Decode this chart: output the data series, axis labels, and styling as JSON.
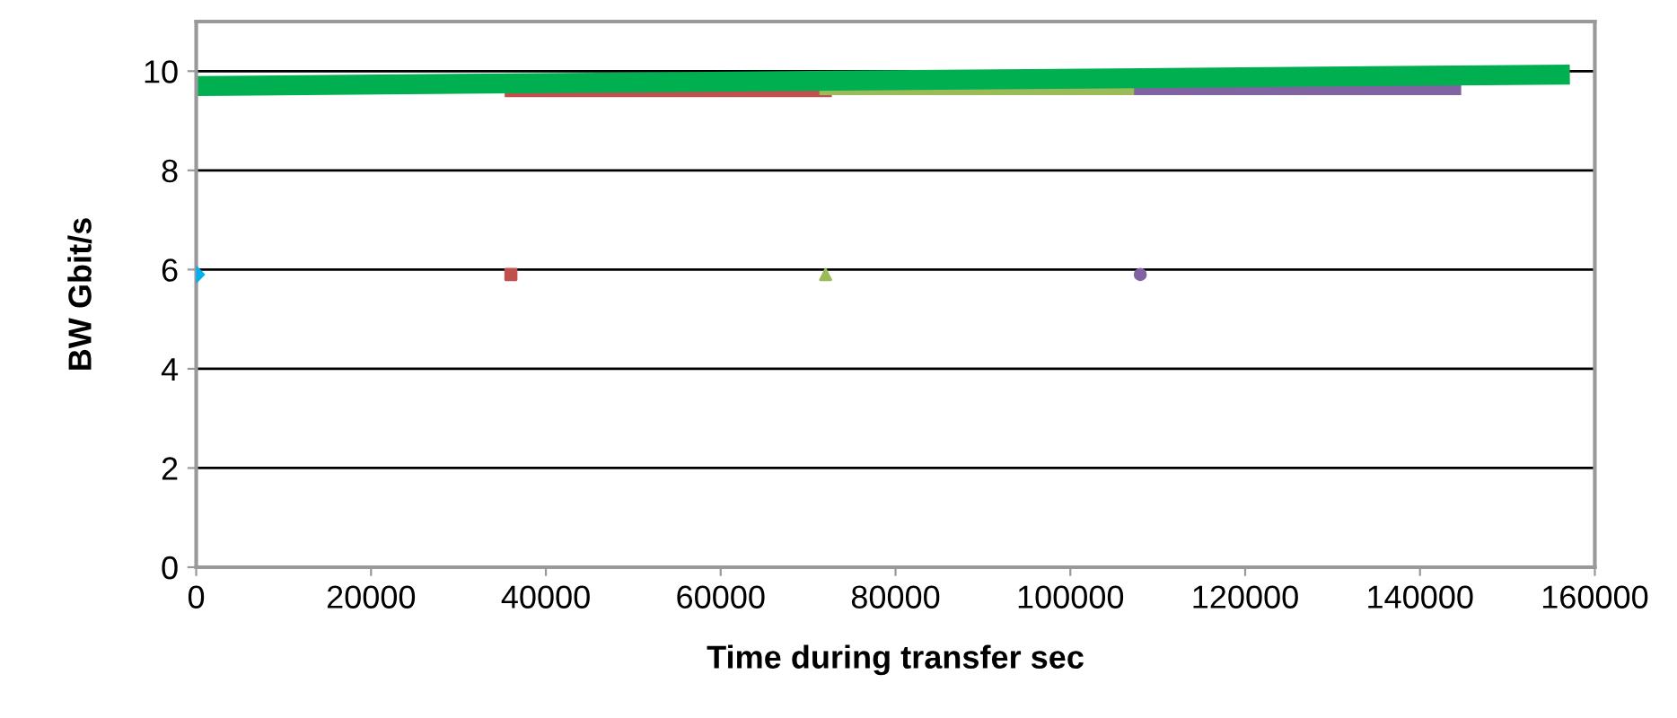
{
  "chart_data": {
    "type": "line",
    "xlabel": "Time during transfer sec",
    "ylabel": "BW Gbit/s",
    "xlim": [
      0,
      160000
    ],
    "xticks": [
      0,
      20000,
      40000,
      60000,
      80000,
      100000,
      120000,
      140000,
      160000
    ],
    "ylim": [
      0,
      11
    ],
    "yticks": [
      0,
      2,
      4,
      6,
      8,
      10
    ],
    "grid": "y",
    "legend": false,
    "series": [
      {
        "type": "scatter",
        "marker": "diamond",
        "color": "#00b0f0",
        "x": [
          0
        ],
        "values": [
          5.9
        ]
      },
      {
        "type": "scatter",
        "marker": "square",
        "color": "#c0504d",
        "x": [
          36000
        ],
        "values": [
          5.9
        ]
      },
      {
        "type": "scatter",
        "marker": "triangle",
        "color": "#9bbb59",
        "x": [
          72000
        ],
        "values": [
          5.9
        ]
      },
      {
        "type": "scatter",
        "marker": "circle",
        "color": "#8064a2",
        "x": [
          108000
        ],
        "values": [
          5.9
        ]
      },
      {
        "marker": "none",
        "color": "#c0504d",
        "x": [
          36000,
          72000
        ],
        "values": [
          9.6,
          9.6
        ]
      },
      {
        "marker": "none",
        "color": "#9bbb59",
        "x": [
          72000,
          108000
        ],
        "values": [
          9.64,
          9.64
        ]
      },
      {
        "marker": "none",
        "color": "#8064a2",
        "x": [
          108000,
          144000
        ],
        "values": [
          9.64,
          9.64
        ]
      },
      {
        "marker": "none",
        "color": "#00b050",
        "x": [
          0,
          156000
        ],
        "values": [
          9.7,
          9.93
        ]
      }
    ]
  }
}
